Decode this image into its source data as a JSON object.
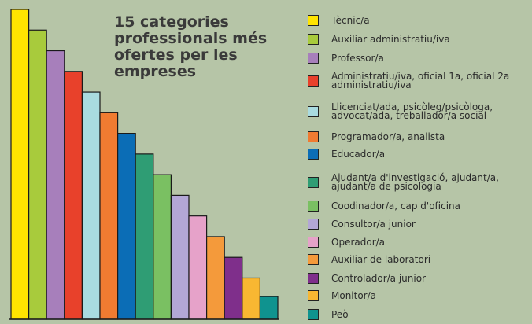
{
  "chart_data": {
    "type": "bar",
    "title": "15 categories professionals més ofertes per les empreses",
    "categories": [
      "Tècnic/a",
      "Auxiliar administratiu/iva",
      "Professor/a",
      "Administratiu/iva, oficial 1a, oficial 2a administratiu/iva",
      "Llicenciat/ada, psicòleg/psicòloga, advocat/ada, treballador/a social",
      "Programador/a, analista",
      "Educador/a",
      "Ajudant/a d'investigació, ajudant/a, ajudant/a de psicologia",
      "Coodinador/a, cap d'oficina",
      "Consultor/a junior",
      "Operador/a",
      "Auxiliar de laboratori",
      "Controlador/a junior",
      "Monitor/a",
      "Peò"
    ],
    "values": [
      15,
      14,
      13,
      12,
      11,
      10,
      9,
      8,
      7,
      6,
      5,
      4,
      3,
      2,
      1.1
    ],
    "colors": [
      "#ffe400",
      "#a8cb3c",
      "#a77fbb",
      "#e8412b",
      "#a9dbe0",
      "#f07b31",
      "#0b6db6",
      "#2f9d74",
      "#7ac062",
      "#b3a7d6",
      "#e6a2c9",
      "#f49a3b",
      "#7f2f8b",
      "#f8b732",
      "#0f938f"
    ],
    "ylim": [
      0,
      15
    ]
  }
}
